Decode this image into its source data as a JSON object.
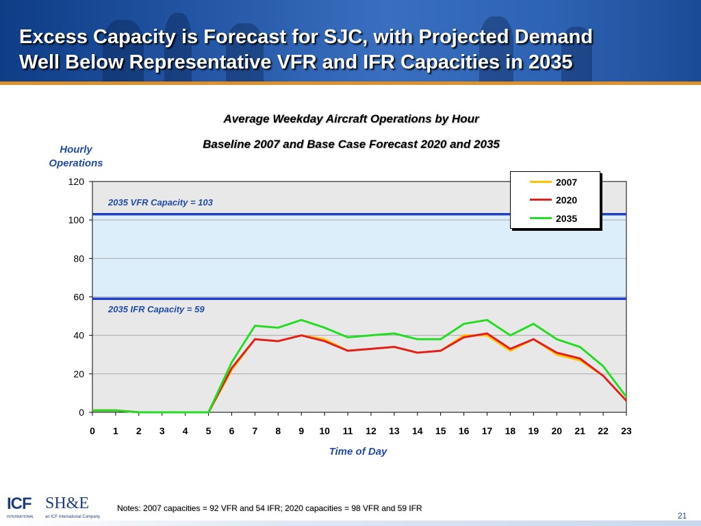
{
  "slide": {
    "title_line1": "Excess Capacity is Forecast for SJC, with Projected Demand",
    "title_line2": "Well Below Representative VFR and IFR Capacities in 2035",
    "notes": "Notes: 2007 capacities = 92 VFR and 54 IFR; 2020 capacities = 98 VFR and 59 IFR",
    "page_number": "21",
    "logo_icf_text": "ICF",
    "logo_icf_sub": "INTERNATIONAL",
    "logo_she_text": "SH&E",
    "logo_she_sub": "an ICF International Company"
  },
  "chart_data": {
    "type": "line",
    "title": "Average Weekday Aircraft Operations by Hour",
    "subtitle": "Baseline 2007 and Base Case Forecast 2020 and 2035",
    "ylabel": "Hourly Operations",
    "xlabel": "Time of Day",
    "ylim": [
      0,
      120
    ],
    "yticks": [
      0,
      20,
      40,
      60,
      80,
      100,
      120
    ],
    "x": [
      0,
      1,
      2,
      3,
      4,
      5,
      6,
      7,
      8,
      9,
      10,
      11,
      12,
      13,
      14,
      15,
      16,
      17,
      18,
      19,
      20,
      21,
      22,
      23
    ],
    "grid": true,
    "legend_position": "top-right",
    "series": [
      {
        "name": "2007",
        "color": "#ffc000",
        "values": [
          1,
          1,
          0,
          0,
          0,
          0,
          22,
          38,
          37,
          40,
          38,
          32,
          33,
          34,
          31,
          32,
          40,
          40,
          32,
          38,
          30,
          27,
          19,
          6
        ]
      },
      {
        "name": "2020",
        "color": "#e02020",
        "values": [
          1,
          1,
          0,
          0,
          0,
          0,
          23,
          38,
          37,
          40,
          37,
          32,
          33,
          34,
          31,
          32,
          39,
          41,
          33,
          38,
          31,
          28,
          19,
          6
        ]
      },
      {
        "name": "2035",
        "color": "#22dd22",
        "values": [
          1,
          1,
          0,
          0,
          0,
          0,
          26,
          45,
          44,
          48,
          44,
          39,
          40,
          41,
          38,
          38,
          46,
          48,
          40,
          46,
          38,
          34,
          24,
          8
        ]
      }
    ],
    "reference_lines": [
      {
        "label": "2035 VFR Capacity = 103",
        "value": 103,
        "color": "#1f3fc8"
      },
      {
        "label": "2035 IFR Capacity = 59",
        "value": 59,
        "color": "#1f3fc8"
      }
    ],
    "colors": {
      "plot_background": "#e8e8e8",
      "capacity_band": "#dbeefa",
      "gridline": "#a8a8a8",
      "text_blue": "#1f4aa8"
    }
  }
}
